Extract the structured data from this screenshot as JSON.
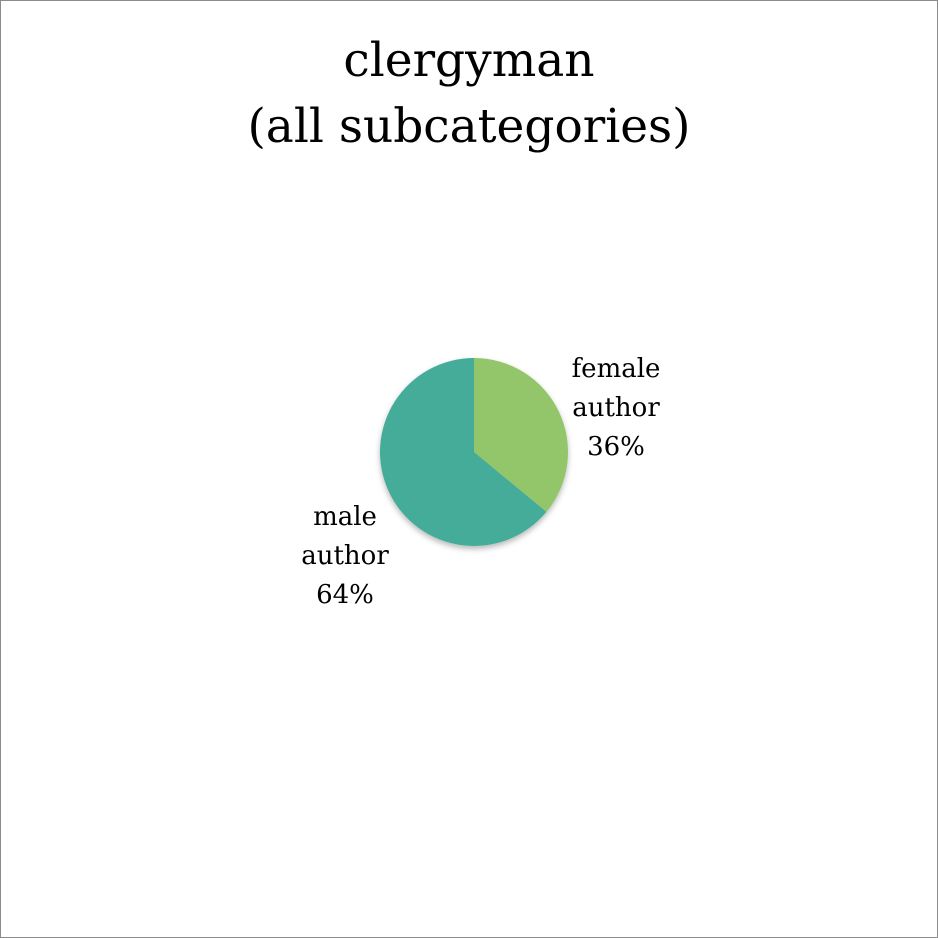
{
  "chart_data": {
    "type": "pie",
    "title_lines": [
      "clergyman",
      "(all subcategories)"
    ],
    "slices": [
      {
        "label": "female author",
        "label_lines": [
          "female",
          "author"
        ],
        "pct_text": "36%",
        "value": 36,
        "color": "#93c66a"
      },
      {
        "label": "male author",
        "label_lines": [
          "male",
          "author"
        ],
        "pct_text": "64%",
        "value": 64,
        "color": "#44ac99"
      }
    ],
    "start_angle": "top (12 o'clock), clockwise"
  }
}
